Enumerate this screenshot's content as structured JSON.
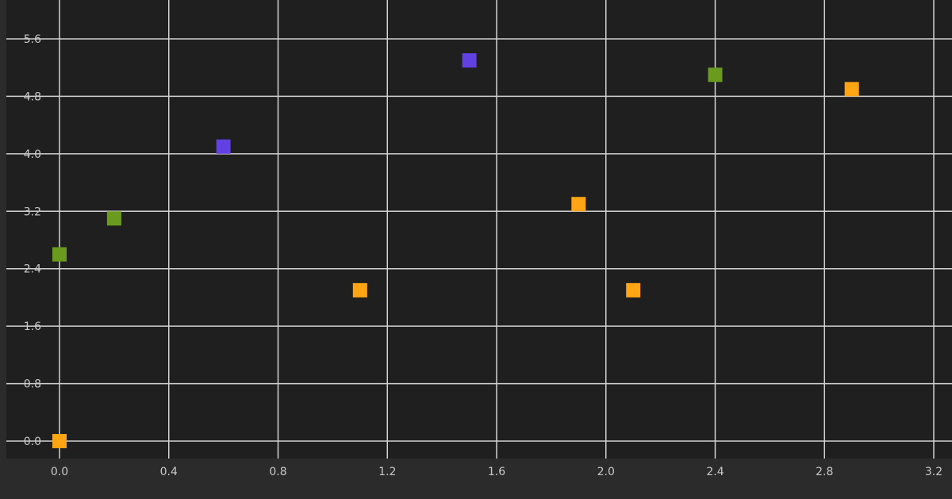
{
  "chart_data": {
    "type": "scatter",
    "title": "",
    "xlabel": "",
    "ylabel": "",
    "xlim": [
      -0.08,
      3.25
    ],
    "ylim": [
      -0.08,
      6.12
    ],
    "grid": true,
    "x_ticks": [
      0.0,
      0.4,
      0.8,
      1.2,
      1.6,
      2.0,
      2.4,
      2.8,
      3.2
    ],
    "y_ticks": [
      0.0,
      0.8,
      1.6,
      2.4,
      3.2,
      4.0,
      4.8,
      5.6
    ],
    "x_tick_labels": [
      "0.0",
      "0.4",
      "0.8",
      "1.2",
      "1.6",
      "2.0",
      "2.4",
      "2.8",
      "3.2"
    ],
    "y_tick_labels": [
      "0.0",
      "0.8",
      "1.6",
      "2.4",
      "3.2",
      "4.0",
      "4.8",
      "5.6"
    ],
    "colors": {
      "plot_background": "#1f1f1f",
      "page_background": "#2b2b2b",
      "grid": "#d2d2d2",
      "tick_label": "#c8c8c8"
    },
    "series": [
      {
        "color": "#ffa514",
        "points": [
          {
            "x": 0.0,
            "y": 0.0
          },
          {
            "x": 1.1,
            "y": 2.1
          },
          {
            "x": 1.9,
            "y": 3.3
          },
          {
            "x": 2.1,
            "y": 2.1
          },
          {
            "x": 2.9,
            "y": 4.9
          }
        ]
      },
      {
        "color": "#6b9b1e",
        "points": [
          {
            "x": 0.0,
            "y": 2.6
          },
          {
            "x": 0.2,
            "y": 3.1
          },
          {
            "x": 2.4,
            "y": 5.1
          }
        ]
      },
      {
        "color": "#6141e2",
        "points": [
          {
            "x": 0.6,
            "y": 4.1
          },
          {
            "x": 1.5,
            "y": 5.3
          }
        ]
      }
    ]
  }
}
